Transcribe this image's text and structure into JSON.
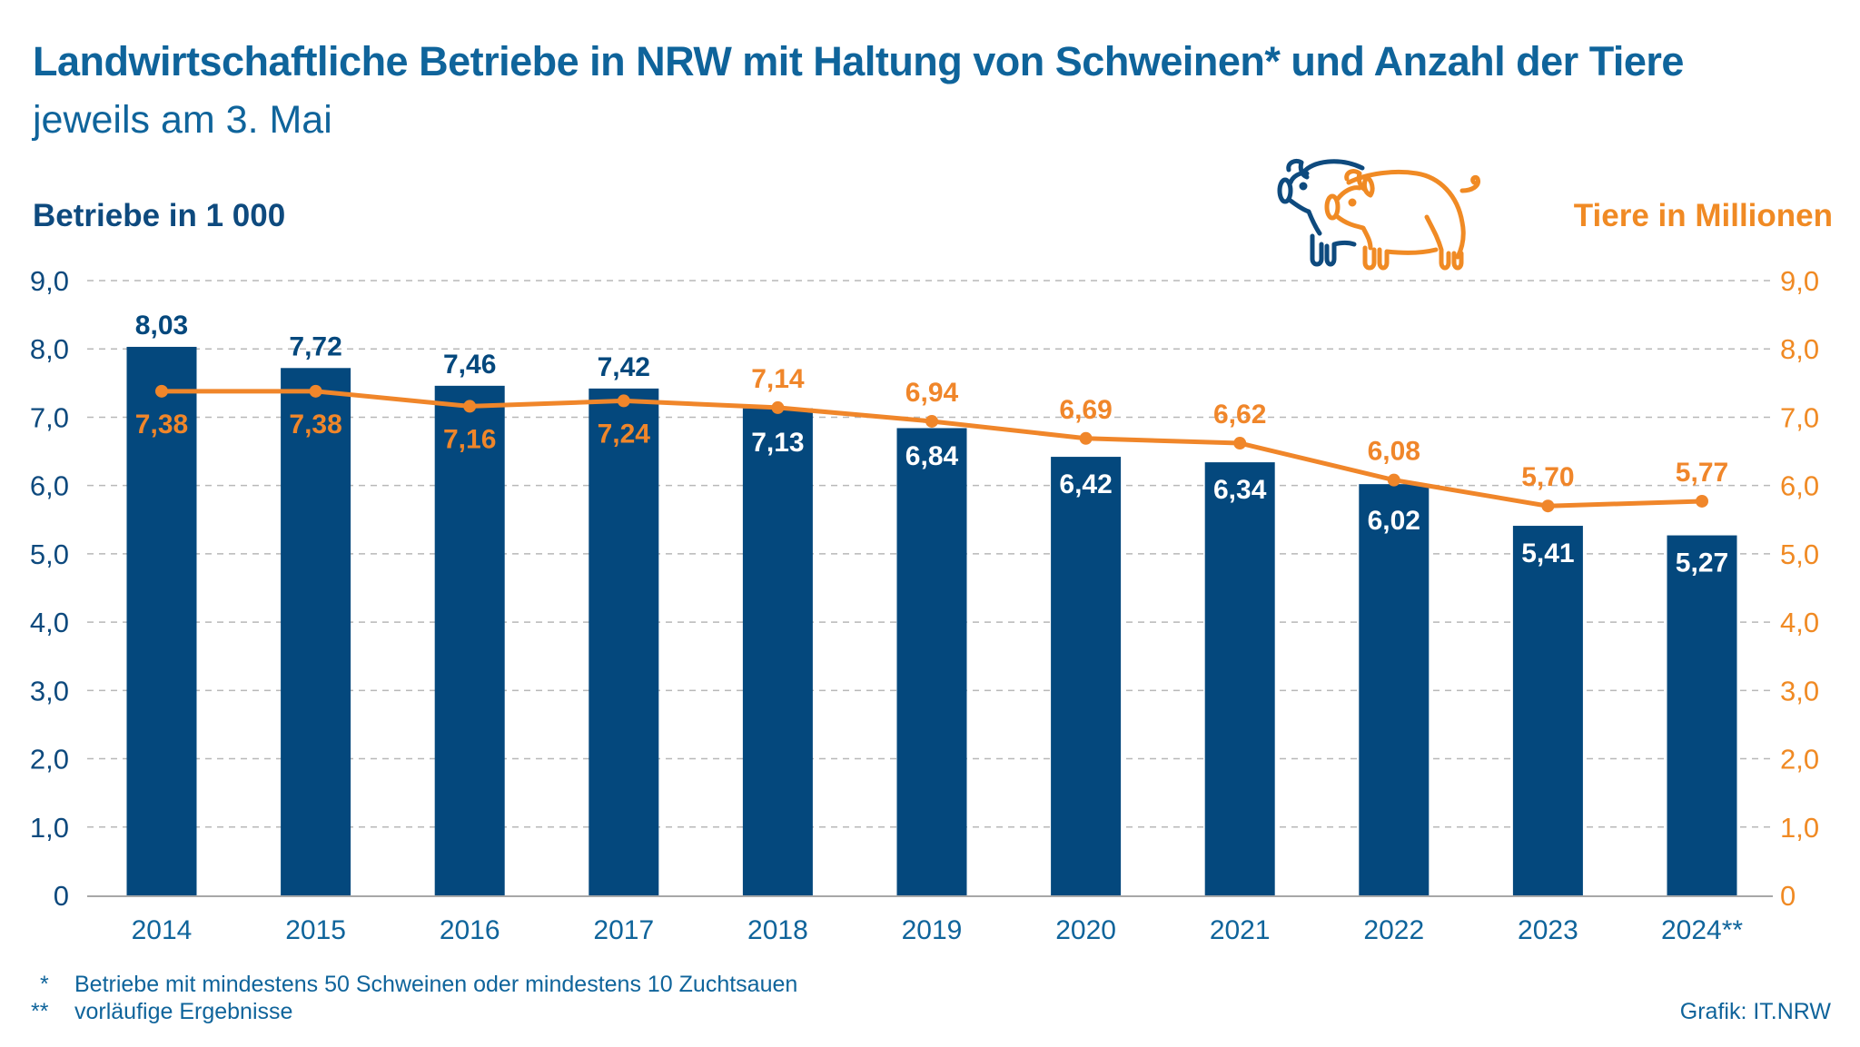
{
  "header": {
    "title": "Landwirtschaftliche Betriebe in NRW mit Haltung von Schweinen* und Anzahl der Tiere",
    "subtitle": "jeweils am 3. Mai"
  },
  "icon": {
    "name": "pigs-icon"
  },
  "colors": {
    "bars": "#04487d",
    "line": "#f0862a",
    "title": "#0f649b",
    "left_axis": "#0e4a7e",
    "right_axis": "#f08a24",
    "grid": "#b8b8b8"
  },
  "chart_data": {
    "type": "bar",
    "title": "Landwirtschaftliche Betriebe in NRW mit Haltung von Schweinen* und Anzahl der Tiere",
    "subtitle": "jeweils am 3. Mai",
    "categories": [
      "2014",
      "2015",
      "2016",
      "2017",
      "2018",
      "2019",
      "2020",
      "2021",
      "2022",
      "2023",
      "2024**"
    ],
    "series": [
      {
        "name": "Betriebe in 1 000",
        "type": "bar",
        "axis": "left",
        "values": [
          8.03,
          7.72,
          7.46,
          7.42,
          7.13,
          6.84,
          6.42,
          6.34,
          6.02,
          5.41,
          5.27
        ],
        "labels": [
          "8,03",
          "7,72",
          "7,46",
          "7,42",
          "7,13",
          "6,84",
          "6,42",
          "6,34",
          "6,02",
          "5,41",
          "5,27"
        ]
      },
      {
        "name": "Tiere in Millionen",
        "type": "line",
        "axis": "right",
        "values": [
          7.38,
          7.38,
          7.16,
          7.24,
          7.14,
          6.94,
          6.69,
          6.62,
          6.08,
          5.7,
          5.77
        ],
        "labels": [
          "7,38",
          "7,38",
          "7,16",
          "7,24",
          "7,14",
          "6,94",
          "6,69",
          "6,62",
          "6,08",
          "5,70",
          "5,77"
        ]
      }
    ],
    "ylabel": "Betriebe in 1 000",
    "y2label": "Tiere in Millionen",
    "xlabel": "",
    "ylim": [
      0,
      9
    ],
    "y2lim": [
      0,
      9
    ],
    "yticks": [
      "0",
      "1,0",
      "2,0",
      "3,0",
      "4,0",
      "5,0",
      "6,0",
      "7,0",
      "8,0",
      "9,0"
    ],
    "grid": true
  },
  "footnotes": [
    {
      "mark": "*",
      "text": "Betriebe mit mindestens 50 Schweinen oder mindestens 10 Zuchtsauen"
    },
    {
      "mark": "**",
      "text": "vorläufige Ergebnisse"
    }
  ],
  "credit": "Grafik: IT.NRW"
}
